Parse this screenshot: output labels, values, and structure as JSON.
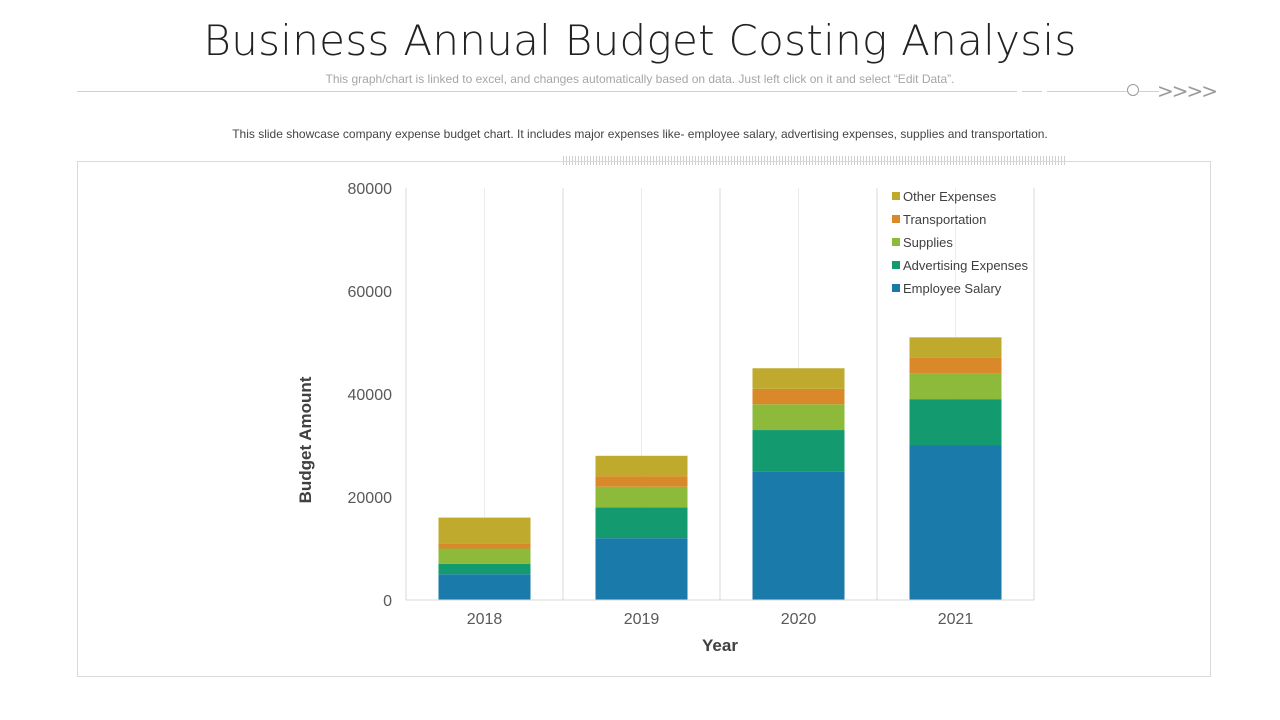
{
  "header": {
    "title": "Business Annual Budget Costing Analysis",
    "subtitle": "This graph/chart is linked to excel, and changes automatically based on data. Just left click on it and select “Edit Data”.",
    "decor_chevrons": ">>>>",
    "description": "This slide showcase company expense budget chart. It includes major expenses like- employee salary, advertising  expenses, supplies and transportation."
  },
  "chart_data": {
    "type": "bar",
    "stacked": true,
    "categories": [
      "2018",
      "2019",
      "2020",
      "2021"
    ],
    "series": [
      {
        "name": "Employee Salary",
        "color": "#1a7aaa",
        "values": [
          5000,
          12000,
          25000,
          30000
        ]
      },
      {
        "name": "Advertising Expenses",
        "color": "#139a6e",
        "values": [
          2000,
          6000,
          8000,
          9000
        ]
      },
      {
        "name": "Supplies",
        "color": "#8dba3a",
        "values": [
          3000,
          4000,
          5000,
          5000
        ]
      },
      {
        "name": "Transportation",
        "color": "#d9882a",
        "values": [
          1000,
          2000,
          3000,
          3000
        ]
      },
      {
        "name": "Other Expenses",
        "color": "#bfaa2e",
        "values": [
          5000,
          4000,
          4000,
          4000
        ]
      }
    ],
    "title": "",
    "xlabel": "Year",
    "ylabel": "Budget Amount",
    "ylim": [
      0,
      80000
    ],
    "yticks": [
      "0",
      "20000",
      "40000",
      "60000",
      "80000"
    ],
    "grid": "vertical",
    "legend": "top-right"
  }
}
